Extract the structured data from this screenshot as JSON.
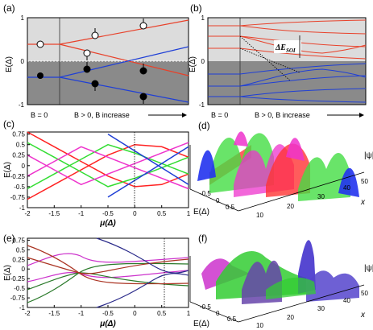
{
  "panels": {
    "a": {
      "label": "(a)",
      "ylabel": "E(Δ)",
      "yticks": [
        "1",
        "0",
        "-1"
      ],
      "caption_left": "B = 0",
      "caption_right": "B > 0, B increase",
      "colors": {
        "upper": "#e8412a",
        "lower": "#1f3fd6",
        "bg_top": "#dcdcdc",
        "bg_bottom": "#8a8a8a"
      }
    },
    "b": {
      "label": "(b)",
      "ylabel": "E(Δ)",
      "yticks": [
        "1",
        "0",
        "-1"
      ],
      "caption_left": "B = 0",
      "caption_right": "B > 0, B increase",
      "annotation": "ΔE",
      "annotation_sub": "SOI"
    },
    "c": {
      "label": "(c)",
      "ylabel": "E(Δ)",
      "xlabel": "μ(Δ)",
      "xticks": [
        "-2",
        "-1.5",
        "-1",
        "-0.5",
        "0",
        "0.5",
        "1"
      ],
      "yticks": [
        "0.75",
        "0.5",
        "0.25",
        "0",
        "-0.25",
        "-0.5",
        "-0.75",
        "-1"
      ]
    },
    "d": {
      "label": "(d)",
      "zlabel": "|ψ|²",
      "elabel": "E(Δ)",
      "xlabel": "x",
      "eticks": [
        "-0.5",
        "0",
        "0.5"
      ],
      "xticks": [
        "10",
        "20",
        "30",
        "40",
        "50"
      ]
    },
    "e": {
      "label": "(e)",
      "ylabel": "E(Δ)",
      "xlabel": "μ(Δ)",
      "xticks": [
        "-2",
        "-1.5",
        "-1",
        "-0.5",
        "0",
        "0.5",
        "1"
      ],
      "yticks": [
        "0.75",
        "0.5",
        "0.25",
        "0",
        "-0.25",
        "-0.5",
        "-0.75",
        "-1"
      ]
    },
    "f": {
      "label": "(f)",
      "zlabel": "|ψ|²",
      "elabel": "E(Δ)",
      "xlabel": "x",
      "eticks": [
        "-0.5",
        "0",
        "0.5"
      ],
      "xticks": [
        "10",
        "20",
        "30",
        "40",
        "50"
      ]
    }
  },
  "chart_data": [
    {
      "type": "line",
      "panel": "a",
      "ylabel": "E(Δ)",
      "ylim": [
        -1.1,
        1.1
      ],
      "series": [
        {
          "color": "#e8412a",
          "points": [
            [
              0.25,
              0.37
            ],
            [
              1.0,
              0.95
            ]
          ]
        },
        {
          "color": "#e8412a",
          "points": [
            [
              0.25,
              0.37
            ],
            [
              1.0,
              -0.15
            ]
          ]
        },
        {
          "color": "#1f3fd6",
          "points": [
            [
              0.25,
              -0.37
            ],
            [
              1.0,
              0.15
            ]
          ]
        },
        {
          "color": "#1f3fd6",
          "points": [
            [
              0.25,
              -0.37
            ],
            [
              1.0,
              -0.95
            ]
          ]
        }
      ]
    },
    {
      "type": "line",
      "panel": "b",
      "ylabel": "E(Δ)",
      "ylim": [
        -1.1,
        1.1
      ]
    },
    {
      "type": "line",
      "panel": "c",
      "xlabel": "μ(Δ)",
      "ylabel": "E(Δ)",
      "xlim": [
        -2,
        1
      ],
      "ylim": [
        -1,
        0.8
      ],
      "series": [
        {
          "color": "#ff2222",
          "x": [
            -2,
            -1.5,
            -1,
            -0.5,
            0,
            0.5,
            1
          ],
          "y": [
            -0.8,
            -0.45,
            -0.1,
            0.25,
            0.5,
            0.45,
            0.2
          ]
        },
        {
          "color": "#ff2222",
          "x": [
            -2,
            -1.5,
            -1,
            -0.5,
            0,
            0.5,
            1
          ],
          "y": [
            0.8,
            0.45,
            0.1,
            -0.25,
            -0.5,
            -0.45,
            -0.2
          ]
        },
        {
          "color": "#33dd33",
          "x": [
            -2,
            -1.5,
            -1,
            -0.5,
            0,
            0.5,
            1
          ],
          "y": [
            -0.55,
            -0.2,
            0.15,
            0.5,
            0.3,
            0.05,
            -0.2
          ]
        },
        {
          "color": "#33dd33",
          "x": [
            -2,
            -1.5,
            -1,
            -0.5,
            0,
            0.5,
            1
          ],
          "y": [
            0.55,
            0.2,
            -0.15,
            -0.5,
            -0.3,
            -0.05,
            0.2
          ]
        },
        {
          "color": "#ee33cc",
          "x": [
            -2,
            -1.5,
            -1,
            -0.5,
            0,
            0.5,
            1
          ],
          "y": [
            -0.25,
            0.1,
            0.45,
            0.2,
            -0.05,
            -0.3,
            -0.55
          ]
        },
        {
          "color": "#ee33cc",
          "x": [
            -2,
            -1.5,
            -1,
            -0.5,
            0,
            0.5,
            1
          ],
          "y": [
            0.25,
            -0.1,
            -0.45,
            -0.2,
            0.05,
            0.3,
            0.55
          ]
        },
        {
          "color": "#1f3fd6",
          "x": [
            -0.5,
            0,
            0.5,
            1
          ],
          "y": [
            -0.75,
            -0.35,
            0.05,
            0.45
          ]
        },
        {
          "color": "#1f3fd6",
          "x": [
            -0.5,
            0,
            0.5,
            1
          ],
          "y": [
            0.75,
            0.35,
            -0.05,
            -0.45
          ]
        }
      ],
      "vline": 0
    },
    {
      "type": "line",
      "panel": "e",
      "xlabel": "μ(Δ)",
      "ylabel": "E(Δ)",
      "xlim": [
        -2,
        1
      ],
      "ylim": [
        -1,
        0.8
      ],
      "vline": 0.45
    }
  ]
}
